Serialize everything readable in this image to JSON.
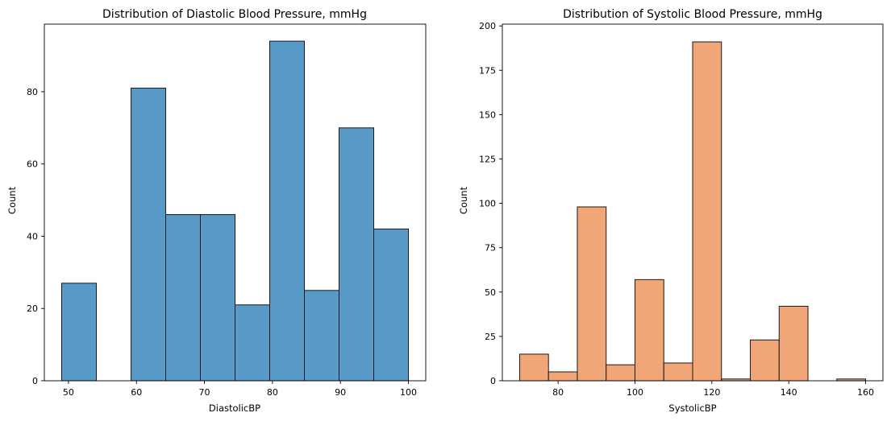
{
  "chart_data": [
    {
      "type": "bar",
      "title": "Distribution of Diastolic Blood Pressure, mmHg",
      "xlabel": "DiastolicBP",
      "ylabel": "Count",
      "color": "#5799c7",
      "edge_color": "#1a1a1a",
      "xlim": [
        46.45,
        102.55
      ],
      "ylim": [
        0,
        98.7
      ],
      "xticks": [
        50,
        60,
        70,
        80,
        90,
        100
      ],
      "yticks": [
        0,
        20,
        40,
        60,
        80
      ],
      "bins": [
        {
          "x0": 49.0,
          "x1": 54.1,
          "count": 27
        },
        {
          "x0": 54.1,
          "x1": 59.2,
          "count": 0
        },
        {
          "x0": 59.2,
          "x1": 64.3,
          "count": 81
        },
        {
          "x0": 64.3,
          "x1": 69.4,
          "count": 46
        },
        {
          "x0": 69.4,
          "x1": 74.5,
          "count": 46
        },
        {
          "x0": 74.5,
          "x1": 79.6,
          "count": 21
        },
        {
          "x0": 79.6,
          "x1": 84.7,
          "count": 94
        },
        {
          "x0": 84.7,
          "x1": 89.8,
          "count": 25
        },
        {
          "x0": 89.8,
          "x1": 94.9,
          "count": 70
        },
        {
          "x0": 94.9,
          "x1": 100.0,
          "count": 42
        }
      ]
    },
    {
      "type": "bar",
      "title": "Distribution of Systolic Blood Pressure, mmHg",
      "xlabel": "SystolicBP",
      "ylabel": "Count",
      "color": "#f0a677",
      "edge_color": "#1a1a1a",
      "xlim": [
        65.5,
        164.5
      ],
      "ylim": [
        0,
        201
      ],
      "xticks": [
        80,
        100,
        120,
        140,
        160
      ],
      "yticks": [
        0,
        25,
        50,
        75,
        100,
        125,
        150,
        175,
        200
      ],
      "bins": [
        {
          "x0": 70.0,
          "x1": 77.5,
          "count": 15
        },
        {
          "x0": 77.5,
          "x1": 85.0,
          "count": 5
        },
        {
          "x0": 85.0,
          "x1": 92.5,
          "count": 98
        },
        {
          "x0": 92.5,
          "x1": 100.0,
          "count": 9
        },
        {
          "x0": 100.0,
          "x1": 107.5,
          "count": 57
        },
        {
          "x0": 107.5,
          "x1": 115.0,
          "count": 10
        },
        {
          "x0": 115.0,
          "x1": 122.5,
          "count": 191
        },
        {
          "x0": 122.5,
          "x1": 130.0,
          "count": 1
        },
        {
          "x0": 130.0,
          "x1": 137.5,
          "count": 23
        },
        {
          "x0": 137.5,
          "x1": 145.0,
          "count": 42
        },
        {
          "x0": 145.0,
          "x1": 152.5,
          "count": 0
        },
        {
          "x0": 152.5,
          "x1": 160.0,
          "count": 1
        }
      ]
    }
  ]
}
